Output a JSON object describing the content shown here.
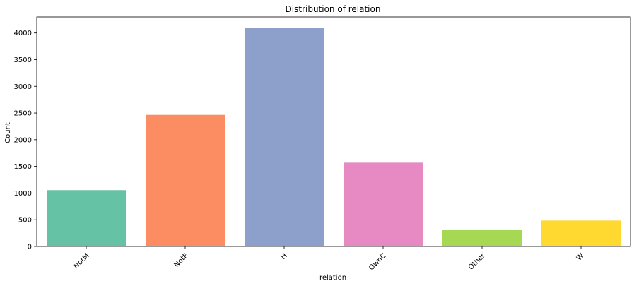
{
  "chart_data": {
    "type": "bar",
    "title": "Distribution of relation",
    "xlabel": "relation",
    "ylabel": "Count",
    "categories": [
      "NotM",
      "NotF",
      "H",
      "OwnC",
      "Other",
      "W"
    ],
    "values": [
      1055,
      2465,
      4090,
      1570,
      315,
      485
    ],
    "colors": [
      "#66c2a5",
      "#fc8d62",
      "#8da0cb",
      "#e78ac3",
      "#a6d854",
      "#ffd92f"
    ],
    "ylim": [
      0,
      4300
    ],
    "yticks": [
      0,
      500,
      1000,
      1500,
      2000,
      2500,
      3000,
      3500,
      4000
    ],
    "ytick_labels": [
      "0",
      "500",
      "1000",
      "1500",
      "2000",
      "2500",
      "3000",
      "3500",
      "4000"
    ],
    "xtick_rotation": 45,
    "grid": false,
    "legend": "none"
  }
}
